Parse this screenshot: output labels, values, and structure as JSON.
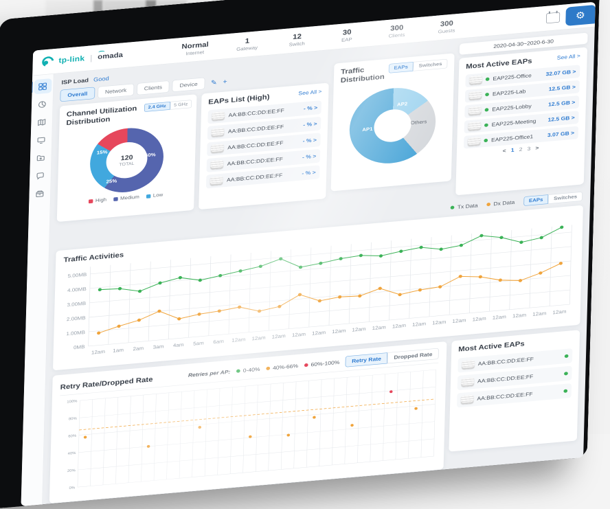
{
  "header": {
    "logo_primary": "tp-link",
    "logo_secondary": "omada",
    "stats": [
      {
        "value": "Normal",
        "label": "Internet"
      },
      {
        "value": "1",
        "label": "Gateway"
      },
      {
        "value": "12",
        "label": "Switch"
      },
      {
        "value": "30",
        "label": "EAP"
      },
      {
        "value": "300",
        "label": "Clients"
      },
      {
        "value": "300",
        "label": "Guests"
      }
    ],
    "date_range": "2020-04-30~2020-6-30"
  },
  "sidebar": {
    "items": [
      "dashboard",
      "statistics",
      "map",
      "clients",
      "devices",
      "insight",
      "log"
    ],
    "active": "dashboard"
  },
  "toolbar": {
    "isp_load_label": "ISP Load",
    "isp_load_value": "Good",
    "tabs": [
      "Overall",
      "Network",
      "Clients",
      "Device"
    ],
    "active_tab": "Overall",
    "edit_icon": "✎",
    "add_icon": "+"
  },
  "channel_panel": {
    "title": "Channel Utilization Distribution",
    "band_tabs": [
      "2.4 GHz",
      "5 GHz"
    ],
    "active_band": "2.4 GHz",
    "legend": [
      {
        "label": "High",
        "color": "#e6475c"
      },
      {
        "label": "Medium",
        "color": "#5565ae"
      },
      {
        "label": "Low",
        "color": "#41a8de"
      }
    ]
  },
  "eaps_list_panel": {
    "title": "EAPs List (High)",
    "see_all": "See All >",
    "rows": [
      {
        "mac": "AA:BB:CC:DD:EE:FF",
        "value": "- % >"
      },
      {
        "mac": "AA:BB:CC:DD:EE:FF",
        "value": "- % >"
      },
      {
        "mac": "AA:BB:CC:DD:EE:FF",
        "value": "- % >"
      },
      {
        "mac": "AA:BB:CC:DD:EE:FF",
        "value": "- % >"
      },
      {
        "mac": "AA:BB:CC:DD:EE:FF",
        "value": "- % >"
      }
    ]
  },
  "traffic_distribution_panel": {
    "title": "Traffic Distribution",
    "tabs": [
      "EAPs",
      "Switches"
    ],
    "active_tab": "EAPs"
  },
  "most_active_panel": {
    "title": "Most Active EAPs",
    "see_all": "See All >",
    "rows": [
      {
        "name": "EAP225-Office",
        "value": "32.07 GB >"
      },
      {
        "name": "EAP225-Lab",
        "value": "12.5 GB >"
      },
      {
        "name": "EAP225-Lobby",
        "value": "12.5 GB >"
      },
      {
        "name": "EAP225-Meeting",
        "value": "12.5 GB >"
      },
      {
        "name": "EAP225-Office1",
        "value": "3.07 GB >"
      }
    ],
    "pagination": {
      "prev": "<",
      "pages": [
        "1",
        "2",
        "3"
      ],
      "next": ">",
      "active_page": "1"
    }
  },
  "traffic_activities_panel": {
    "title": "Traffic Activities",
    "legend": [
      {
        "label": "Tx Data",
        "color": "#3bb257"
      },
      {
        "label": "Dx Data",
        "color": "#f0a43c"
      }
    ],
    "tabs": [
      "EAPs",
      "Switches"
    ],
    "active_tab": "EAPs"
  },
  "retry_panel": {
    "title": "Retry Rate/Dropped Rate",
    "legend_label": "Retries per AP:",
    "legend": [
      {
        "label": "0-40%",
        "color": "#3bb257"
      },
      {
        "label": "40%-66%",
        "color": "#f0a43c"
      },
      {
        "label": "60%-100%",
        "color": "#e6475c"
      }
    ],
    "buttons": [
      "Retry Rate",
      "Dropped Rate"
    ],
    "active_button": "Retry Rate"
  },
  "most_active_bottom_panel": {
    "title": "Most Active EAPs",
    "rows": [
      {
        "mac": "AA:BB:CC:DD:EE:FF",
        "status_color": "#3bb257"
      },
      {
        "mac": "AA:BB:CC:DD:EE:FF",
        "status_color": "#3bb257"
      },
      {
        "mac": "AA:BB:CC:DD:EE:FF",
        "status_color": "#3bb257"
      }
    ]
  },
  "chart_data": [
    {
      "name": "channel_utilization_distribution",
      "type": "pie",
      "center_value": "120",
      "center_label": "TOTAL",
      "slices": [
        {
          "label": "Medium",
          "value": 60,
          "color": "#5565ae"
        },
        {
          "label": "Low",
          "value": 25,
          "color": "#41a8de"
        },
        {
          "label": "High",
          "value": 15,
          "color": "#e6475c"
        }
      ],
      "slice_labels": {
        "medium": "60%",
        "low": "25%",
        "high": "15%"
      }
    },
    {
      "name": "traffic_distribution",
      "type": "pie",
      "slices": [
        {
          "label": "AP2",
          "value": 15,
          "color": "#9dd3ef"
        },
        {
          "label": "Others",
          "value": 25,
          "color": "#d6d9dd"
        },
        {
          "label": "AP1",
          "value": 60,
          "color": "#4ba6d8"
        }
      ],
      "slice_labels": {
        "ap1": "AP1",
        "ap2": "AP2",
        "others": "Others"
      }
    },
    {
      "name": "traffic_activities",
      "type": "line",
      "y_max": 5.5,
      "y_tick_vals": [
        5,
        4,
        3,
        2,
        1,
        0
      ],
      "y_tick_labels": [
        "5.00MB",
        "4.00MB",
        "3.00MB",
        "2.00MB",
        "1.00MB",
        "0MB"
      ],
      "x_labels": [
        "12am",
        "1am",
        "2am",
        "3am",
        "4am",
        "5am",
        "6am",
        "12am",
        "12am",
        "12am",
        "12am",
        "12am",
        "12am",
        "12am",
        "12am",
        "12am",
        "12am",
        "12am",
        "12am",
        "12am",
        "12am",
        "12am",
        "12am",
        "12am"
      ],
      "series": [
        {
          "name": "Tx Data",
          "color": "#3bb257",
          "values": [
            3.85,
            3.8,
            3.5,
            3.95,
            4.2,
            3.9,
            4.1,
            4.3,
            4.5,
            4.9,
            4.2,
            4.35,
            4.55,
            4.65,
            4.5,
            4.7,
            4.85,
            4.6,
            4.75,
            5.3,
            5.05,
            4.6,
            4.8,
            5.4
          ]
        },
        {
          "name": "Dx Data",
          "color": "#f0a43c",
          "values": [
            0.85,
            1.2,
            1.5,
            2.0,
            1.35,
            1.55,
            1.65,
            1.8,
            1.4,
            1.6,
            2.3,
            1.75,
            1.9,
            1.85,
            2.25,
            1.7,
            1.9,
            2.0,
            2.6,
            2.45,
            2.1,
            1.95,
            2.35,
            2.9
          ]
        }
      ]
    },
    {
      "name": "retry_rate",
      "type": "scatter",
      "y_max": 100,
      "y_tick_vals": [
        100,
        80,
        60,
        40,
        20,
        0
      ],
      "y_tick_labels": [
        "100%",
        "80%",
        "60%",
        "40%",
        "20%",
        "0%"
      ],
      "x_slots": 28,
      "threshold": 66,
      "threshold_color": "#f0a43c",
      "series": [
        {
          "name": "0-40%",
          "color": "#3bb257",
          "points": []
        },
        {
          "name": "40%-66%",
          "color": "#f0a43c",
          "points": [
            [
              0,
              57
            ],
            [
              5,
              40
            ],
            [
              9,
              57
            ],
            [
              13,
              41
            ],
            [
              16,
              39
            ],
            [
              18,
              57
            ],
            [
              21,
              44
            ],
            [
              26,
              57
            ]
          ]
        },
        {
          "name": "60%-100%",
          "color": "#e6475c",
          "points": [
            [
              24,
              79
            ]
          ]
        }
      ]
    }
  ]
}
